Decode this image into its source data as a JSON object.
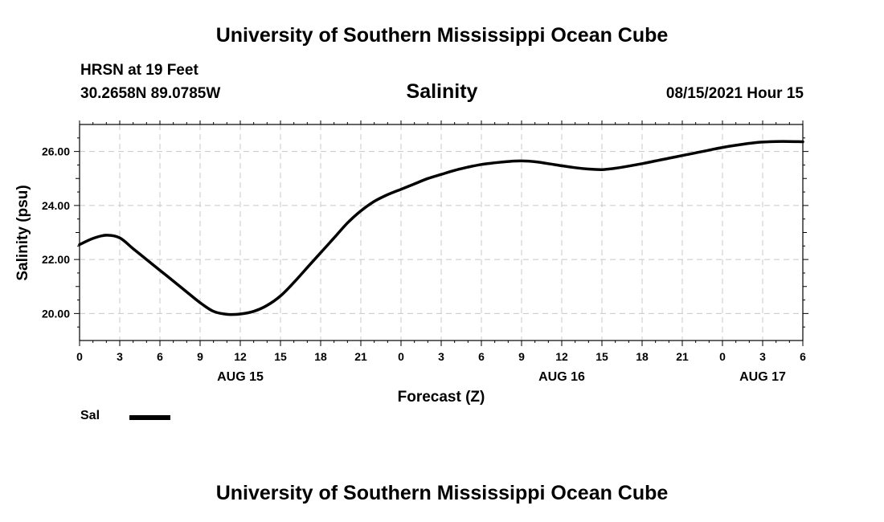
{
  "header": {
    "title": "University of Southern Mississippi Ocean Cube",
    "station": "HRSN at 19 Feet",
    "coords": "30.2658N  89.0785W",
    "variable": "Salinity",
    "run_time": "08/15/2021 Hour 15"
  },
  "footer": {
    "title": "University of Southern Mississippi Ocean Cube"
  },
  "legend": {
    "label": "Sal",
    "color": "#000000"
  },
  "chart_data": {
    "type": "line",
    "title": "Salinity",
    "xlabel": "Forecast (Z)",
    "ylabel": "Salinity (psu)",
    "xlim": [
      0,
      54
    ],
    "ylim": [
      19.0,
      27.0
    ],
    "grid": true,
    "x_tick_labels": [
      "0",
      "3",
      "6",
      "9",
      "12",
      "15",
      "18",
      "21",
      "0",
      "3",
      "6",
      "9",
      "12",
      "15",
      "18",
      "21",
      "0",
      "3",
      "6"
    ],
    "x_tick_hours": [
      0,
      3,
      6,
      9,
      12,
      15,
      18,
      21,
      24,
      27,
      30,
      33,
      36,
      39,
      42,
      45,
      48,
      51,
      54
    ],
    "date_labels": [
      {
        "label": "AUG 15",
        "hour": 12
      },
      {
        "label": "AUG 16",
        "hour": 36
      },
      {
        "label": "AUG 17",
        "hour": 51
      }
    ],
    "y_ticks": [
      20,
      22,
      24,
      26
    ],
    "y_tick_labels": [
      "20.00",
      "22.00",
      "24.00",
      "26.00"
    ],
    "series": [
      {
        "name": "Sal",
        "color": "#000000",
        "x": [
          0,
          1,
          2,
          3,
          4,
          5,
          6,
          7,
          8,
          9,
          10,
          11,
          12,
          13,
          14,
          15,
          16,
          17,
          18,
          19,
          20,
          21,
          22,
          23,
          24,
          25,
          26,
          27,
          28,
          29,
          30,
          31,
          32,
          33,
          34,
          35,
          36,
          37,
          38,
          39,
          40,
          41,
          42,
          43,
          44,
          45,
          46,
          47,
          48,
          49,
          50,
          51,
          52,
          53,
          54
        ],
        "values": [
          22.55,
          22.78,
          22.9,
          22.8,
          22.4,
          22.0,
          21.6,
          21.2,
          20.8,
          20.4,
          20.08,
          19.97,
          19.98,
          20.08,
          20.3,
          20.65,
          21.15,
          21.7,
          22.25,
          22.8,
          23.35,
          23.8,
          24.15,
          24.4,
          24.6,
          24.8,
          25.0,
          25.15,
          25.3,
          25.42,
          25.52,
          25.58,
          25.63,
          25.65,
          25.62,
          25.55,
          25.47,
          25.4,
          25.35,
          25.33,
          25.38,
          25.46,
          25.55,
          25.65,
          25.75,
          25.85,
          25.95,
          26.05,
          26.15,
          26.23,
          26.3,
          26.35,
          26.37,
          26.37,
          26.36
        ]
      }
    ]
  }
}
